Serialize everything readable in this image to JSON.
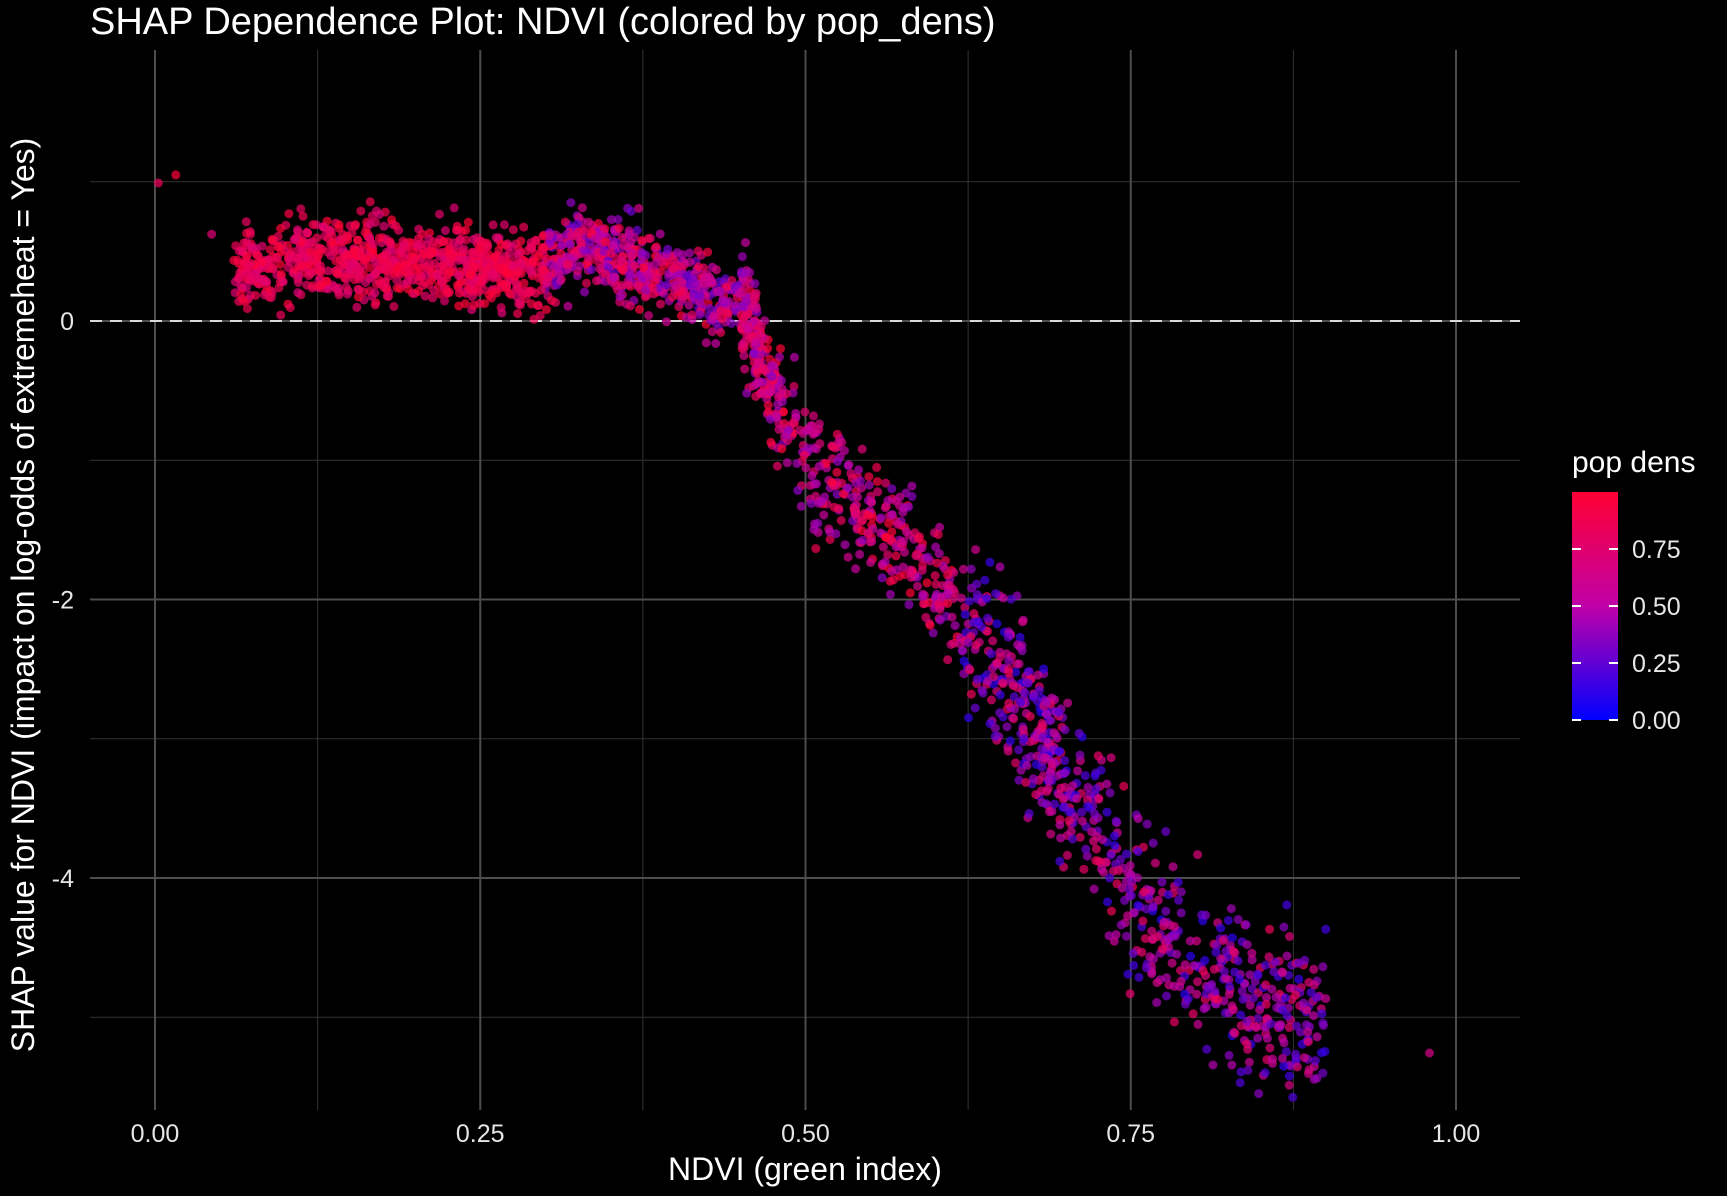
{
  "chart_data": {
    "type": "scatter",
    "title": "SHAP Dependence Plot: NDVI (colored by pop_dens)",
    "xlabel": "NDVI (green index)",
    "ylabel": "SHAP value for NDVI (impact on log-odds of extremeheat = Yes)",
    "xlim": [
      -0.05,
      1.05
    ],
    "ylim": [
      -5.4,
      2.0
    ],
    "x_ticks": [
      "0.00",
      "0.25",
      "0.50",
      "0.75",
      "1.00"
    ],
    "x_tick_values": [
      0,
      0.25,
      0.5,
      0.75,
      1.0
    ],
    "y_ticks": [
      "-4",
      "-2",
      "0"
    ],
    "y_tick_values": [
      -4,
      -2,
      0
    ],
    "x_minor": [
      0.125,
      0.375,
      0.625,
      0.875
    ],
    "y_minor": [
      -5,
      -3,
      -1,
      1
    ],
    "reference_line": {
      "y": 0,
      "style": "dashed",
      "color": "#d9d9d9"
    },
    "grid": true,
    "legend": {
      "title": "pop dens",
      "position": "right",
      "ticks": [
        "0.75",
        "0.50",
        "0.25",
        "0.00"
      ],
      "tick_values": [
        0.75,
        0.5,
        0.25,
        0.0
      ],
      "range": [
        0,
        1
      ],
      "color_low": "#0000ff",
      "color_high": "#ff0033"
    },
    "trend": {
      "description": "SHAP value vs NDVI, approximate centerline",
      "x": [
        0.0,
        0.03,
        0.06,
        0.1,
        0.2,
        0.3,
        0.32,
        0.4,
        0.45,
        0.5,
        0.55,
        0.6,
        0.65,
        0.7,
        0.75,
        0.8,
        0.85,
        0.9,
        1.0
      ],
      "y": [
        0.95,
        1.1,
        0.35,
        0.45,
        0.45,
        0.35,
        0.55,
        0.3,
        0.1,
        -1.0,
        -1.4,
        -1.9,
        -2.5,
        -3.3,
        -4.1,
        -4.6,
        -4.9,
        -5.0,
        -5.0
      ]
    }
  }
}
